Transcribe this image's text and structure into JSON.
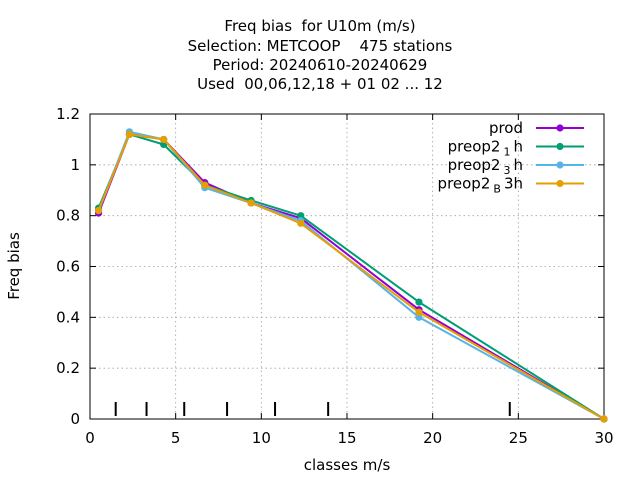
{
  "chart_data": {
    "type": "line",
    "title_lines": [
      "Freq bias  for U10m (m/s)",
      "Selection: METCOOP    475 stations",
      "Period: 20240610-20240629",
      "Used  00,06,12,18 + 01 02 ... 12"
    ],
    "xlabel": "classes m/s",
    "ylabel": "Freq bias",
    "xlim": [
      0,
      30
    ],
    "ylim": [
      0,
      1.2
    ],
    "xticks": [
      0,
      5,
      10,
      15,
      20,
      25,
      30
    ],
    "yticks": [
      0,
      0.2,
      0.4,
      0.6,
      0.8,
      1,
      1.2
    ],
    "ytick_labels": [
      "0",
      "0.2",
      "0.4",
      "0.6",
      "0.8",
      "1",
      "1.2"
    ],
    "grid": true,
    "legend_position": "top-right",
    "class_boundaries": [
      1.5,
      3.3,
      5.5,
      8.0,
      10.8,
      13.9,
      24.5
    ],
    "series": [
      {
        "name": "prod",
        "legend_main": "prod",
        "legend_sub": "",
        "legend_after": "",
        "color": "#9400d3",
        "x": [
          0.5,
          2.3,
          4.3,
          6.7,
          9.4,
          12.3,
          19.2,
          30.0
        ],
        "y": [
          0.81,
          1.12,
          1.1,
          0.93,
          0.85,
          0.79,
          0.43,
          0.0
        ]
      },
      {
        "name": "preop2 1 h",
        "legend_main": "preop2",
        "legend_sub": "1",
        "legend_after": "h",
        "color": "#009e73",
        "x": [
          0.5,
          2.3,
          4.3,
          6.7,
          9.4,
          12.3,
          19.2,
          30.0
        ],
        "y": [
          0.83,
          1.12,
          1.08,
          0.92,
          0.86,
          0.8,
          0.46,
          0.0
        ]
      },
      {
        "name": "preop2 3 h",
        "legend_main": "preop2",
        "legend_sub": "3",
        "legend_after": "h",
        "color": "#56b4e9",
        "x": [
          0.5,
          2.3,
          4.3,
          6.7,
          9.4,
          12.3,
          19.2,
          30.0
        ],
        "y": [
          0.82,
          1.13,
          1.1,
          0.91,
          0.85,
          0.78,
          0.4,
          0.0
        ]
      },
      {
        "name": "preop2 B 3h",
        "legend_main": "preop2",
        "legend_sub": "B",
        "legend_after": "3h",
        "color": "#e69f00",
        "x": [
          0.5,
          2.3,
          4.3,
          6.7,
          9.4,
          12.3,
          19.2,
          30.0
        ],
        "y": [
          0.82,
          1.12,
          1.1,
          0.92,
          0.85,
          0.77,
          0.42,
          0.0
        ]
      }
    ]
  }
}
